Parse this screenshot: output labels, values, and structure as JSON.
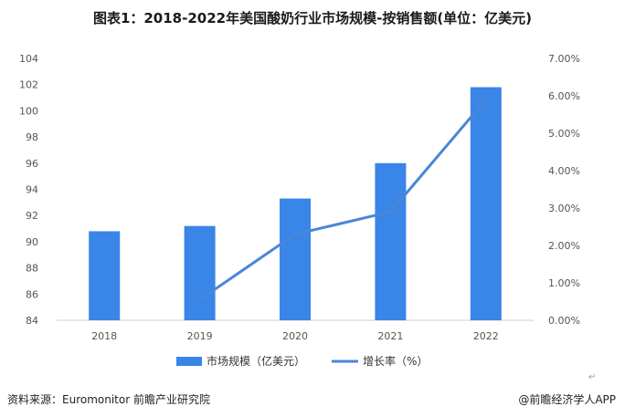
{
  "title": "图表1：2018-2022年美国酸奶行业市场规模-按销售额(单位：亿美元)",
  "source": "资料来源：Euromonitor 前瞻产业研究院",
  "brand": "@前瞻经济学人APP",
  "return_mark": "↵",
  "colors": {
    "bar": "#3a85e8",
    "line": "#4a86d8",
    "grid": "#dcdcdc"
  },
  "chart_data": {
    "type": "bar",
    "categories": [
      "2018",
      "2019",
      "2020",
      "2021",
      "2022"
    ],
    "series": [
      {
        "name": "市场规模（亿美元）",
        "type": "bar",
        "axis": "left",
        "values": [
          90.8,
          91.2,
          93.3,
          96.0,
          101.8
        ]
      },
      {
        "name": "增长率（%）",
        "type": "line",
        "axis": "right",
        "values": [
          null,
          0.55,
          2.3,
          2.9,
          5.9
        ]
      }
    ],
    "y_left": {
      "min": 84,
      "max": 104,
      "step": 2,
      "ticks": [
        "84",
        "86",
        "88",
        "90",
        "92",
        "94",
        "96",
        "98",
        "100",
        "102",
        "104"
      ]
    },
    "y_right": {
      "min": 0,
      "max": 7,
      "step": 1,
      "ticks": [
        "0.00%",
        "1.00%",
        "2.00%",
        "3.00%",
        "4.00%",
        "5.00%",
        "6.00%",
        "7.00%"
      ]
    },
    "grid": false,
    "legend_position": "bottom"
  }
}
